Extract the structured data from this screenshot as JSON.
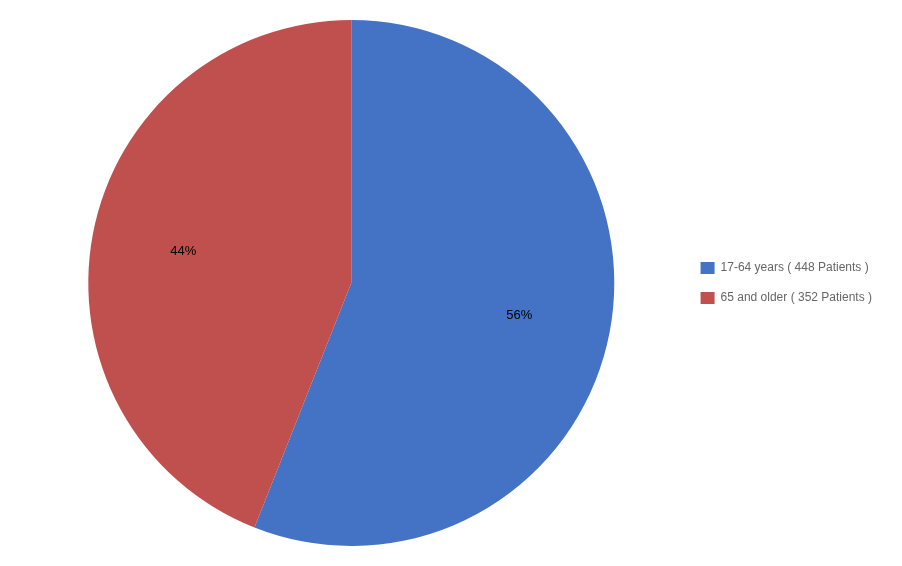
{
  "chart_data": {
    "type": "pie",
    "categories": [
      "17-64 years ( 448 Patients )",
      "65 and older ( 352 Patients )"
    ],
    "values": [
      56,
      44
    ],
    "value_labels": [
      "56%",
      "44%"
    ],
    "colors": [
      "#4472C4",
      "#C0504D"
    ],
    "data_labels": true,
    "legend": "right"
  }
}
